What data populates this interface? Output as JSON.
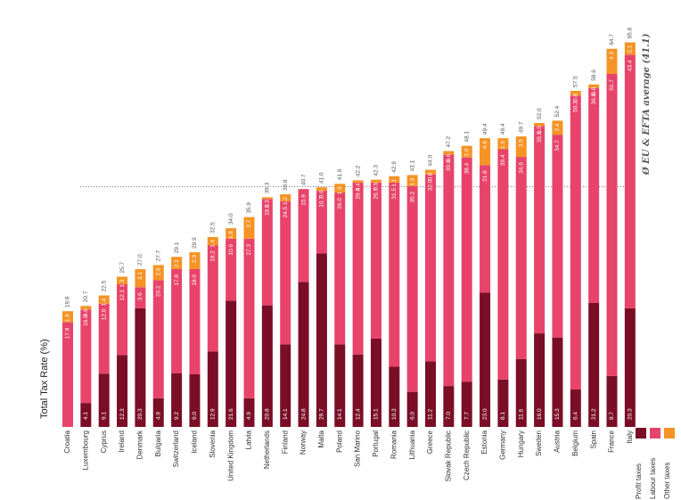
{
  "chart_data": {
    "type": "bar",
    "stacked": true,
    "ylabel": "Total Tax Rate (%)",
    "average_label": "Ø EU & EFTA average (41.1)",
    "average": 41.1,
    "ylim": [
      0,
      70
    ],
    "colors": {
      "profit": "#7a0e26",
      "labour": "#e8436a",
      "other": "#f59324"
    },
    "legend_position": "bottom-right",
    "categories": [
      "Croatia",
      "Luxembourg",
      "Cyprus",
      "Ireland",
      "Denmark",
      "Bulgaria",
      "Switzerland",
      "Iceland",
      "Slovenia",
      "United Kingdom",
      "Latvia",
      "Netherlands",
      "Finland",
      "Norway",
      "Malta",
      "Poland",
      "San Marino",
      "Portugal",
      "Romania",
      "Lithuania",
      "Greece",
      "Slovak Republic",
      "Czech Republic",
      "Estonia",
      "Germany",
      "Hungary",
      "Sweden",
      "Austria",
      "Belgium",
      "Spain",
      "France",
      "Italy"
    ],
    "totals": [
      19.8,
      20.7,
      22.5,
      25.7,
      27.0,
      27.7,
      29.1,
      29.9,
      32.5,
      34.0,
      35.9,
      39.3,
      39.8,
      40.7,
      41.0,
      41.6,
      42.2,
      42.3,
      42.9,
      43.1,
      44.0,
      47.2,
      48.1,
      49.4,
      49.4,
      49.7,
      52.0,
      52.4,
      57.5,
      58.6,
      64.7,
      65.8
    ],
    "series": [
      {
        "name": "Profit taxes",
        "values": [
          0,
          4.1,
          9.1,
          12.3,
          20.3,
          4.9,
          9.2,
          9.0,
          12.9,
          21.6,
          4.9,
          20.8,
          14.1,
          24.8,
          29.7,
          14.1,
          12.4,
          15.1,
          10.3,
          6.0,
          11.2,
          7.0,
          7.7,
          23.0,
          8.1,
          11.6,
          16.0,
          15.3,
          6.4,
          21.2,
          8.7,
          20.3
        ],
        "labels": [
          "",
          "4.1",
          "9.1",
          "12.3",
          "20.3",
          "4.9",
          "9.2",
          "9.0",
          "12.9",
          "21.6",
          "4.9",
          "20.8",
          "14.1",
          "24.8",
          "29.7",
          "14.1",
          "12.4",
          "15.1",
          "10.3",
          "6.0",
          "11.2",
          "7.0",
          "7.7",
          "23.0",
          "8.1",
          "11.6",
          "16.0",
          "15.3",
          "6.4",
          "21.2",
          "8.7",
          "20.3"
        ]
      },
      {
        "name": "Labour taxes",
        "values": [
          17.9,
          16.0,
          12.0,
          12.1,
          3.6,
          20.2,
          17.8,
          18.0,
          18.2,
          10.6,
          27.3,
          18.2,
          24.5,
          15.9,
          10.7,
          26.0,
          29.4,
          26.7,
          31.5,
          35.2,
          32.0,
          39.6,
          38.4,
          21.8,
          39.4,
          34.6,
          35.5,
          34.7,
          50.3,
          36.8,
          51.7,
          43.4
        ],
        "labels": [
          "17.9",
          "16.0",
          "12.0",
          "12.1",
          "3.6",
          "20.2",
          "17.8",
          "18.0",
          "18.2",
          "10.6",
          "27.3",
          "18.2",
          "24.5",
          "15.9",
          "10.7",
          "26.0",
          "29.4",
          "26.7",
          "31.5",
          "35.2",
          "32.0",
          "39.6",
          "38.4",
          "21.8",
          "39.4",
          "34.6",
          "35.5",
          "34.7",
          "50.3",
          "36.8",
          "51.7",
          "43.4"
        ]
      },
      {
        "name": "Other taxes",
        "values": [
          1.9,
          0.6,
          1.4,
          1.3,
          3.1,
          2.6,
          2.1,
          2.9,
          1.4,
          1.8,
          3.7,
          0.3,
          1.2,
          0,
          0.6,
          1.5,
          0.4,
          0.5,
          1.1,
          1.9,
          0.8,
          0.6,
          2.0,
          4.6,
          1.9,
          3.5,
          0.5,
          2.4,
          0.8,
          0.6,
          4.3,
          2.1
        ],
        "labels": [
          "1.9",
          "0.6",
          "1.4",
          "1.3",
          "3.1",
          "2.6",
          "2.1",
          "2.9",
          "1.4",
          "1.8",
          "3.7",
          "0.3",
          "1.2",
          "",
          "0.6",
          "1.5",
          "0.4",
          "0.5",
          "1.1",
          "1.9",
          "0.8",
          "0.6",
          "2.0",
          "4.6",
          "1.9",
          "3.5",
          "0.5",
          "2.4",
          "0.8",
          "0.6",
          "4.3",
          "2.1"
        ]
      }
    ],
    "total_labels": [
      "19.8",
      "20.7",
      "22.5",
      "25.7",
      "27.0",
      "27.7",
      "29.1",
      "29.9",
      "32.5",
      "34.0",
      "35.9",
      "39.3",
      "39.8",
      "40.7",
      "41.0",
      "41.6",
      "42.2",
      "42.3",
      "42.9",
      "43.1",
      "44.0",
      "47.2",
      "48.1",
      "49.4",
      "49.4",
      "49.7",
      "52.0",
      "52.4",
      "57.5",
      "58.6",
      "64.7",
      "65.8"
    ]
  }
}
